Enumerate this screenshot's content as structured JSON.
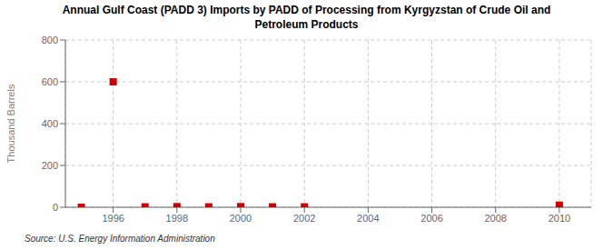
{
  "chart_data": {
    "type": "scatter",
    "title": "Annual Gulf Coast (PADD 3) Imports by PADD of Processing from Kyrgyzstan of Crude Oil and\nPetroleum Products",
    "ylabel": "Thousand Barrels",
    "source": "Source: U.S. Energy Information Administration",
    "x": [
      1995,
      1996,
      1997,
      1998,
      1999,
      2000,
      2001,
      2002,
      2010
    ],
    "values": [
      0,
      600,
      2,
      3,
      2,
      3,
      2,
      2,
      10
    ],
    "color": "#cc0000",
    "marker": "square",
    "xlim": [
      1994.5,
      2011
    ],
    "ylim": [
      0,
      800
    ],
    "xticks": [
      1996,
      1998,
      2000,
      2002,
      2004,
      2006,
      2008,
      2010
    ],
    "yticks": [
      0,
      200,
      400,
      600,
      800
    ],
    "grid": true
  }
}
